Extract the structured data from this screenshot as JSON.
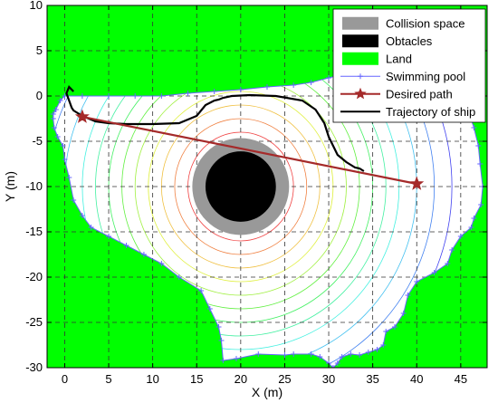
{
  "chart_data": {
    "type": "line",
    "xlabel": "X (m)",
    "ylabel": "Y (m)",
    "xlim": [
      -2,
      48
    ],
    "ylim": [
      -30,
      10
    ],
    "xticks": [
      0,
      5,
      10,
      15,
      20,
      25,
      30,
      35,
      40,
      45
    ],
    "yticks": [
      10,
      5,
      0,
      -5,
      -10,
      -15,
      -20,
      -25,
      -30
    ],
    "grid": true,
    "legend_position": "top-right",
    "legend": [
      {
        "label": "Collision space",
        "kind": "gray-patch"
      },
      {
        "label": "Obtacles",
        "kind": "black-patch"
      },
      {
        "label": "Land",
        "kind": "green-patch"
      },
      {
        "label": "Swimming pool",
        "kind": "blue-line-markers"
      },
      {
        "label": "Desired path",
        "kind": "red-line-star"
      },
      {
        "label": "Trajectory of ship",
        "kind": "black-line"
      }
    ],
    "obstacle": {
      "center": [
        20,
        -10
      ],
      "obstacle_radius": 4,
      "collision_radius": 5.5
    },
    "potential_contours": {
      "center": [
        20,
        -10
      ],
      "radii": [
        6,
        7.5,
        9,
        10.5,
        12,
        13.5,
        15,
        16.5,
        18,
        20,
        22,
        24
      ]
    },
    "desired_path": {
      "x": [
        2,
        40
      ],
      "y": [
        -2.3,
        -9.7
      ]
    },
    "trajectory": {
      "x": [
        1,
        0.5,
        0.2,
        0.5,
        0.8,
        1.0,
        2.0,
        3.5,
        5,
        7,
        10,
        13,
        15,
        16,
        17,
        17.5,
        18,
        19,
        21,
        24,
        27,
        28.5,
        29.5,
        30,
        30.5,
        31,
        32,
        33,
        33.5,
        34
      ],
      "y": [
        0.5,
        1.0,
        0.3,
        -0.5,
        -1.3,
        -1.6,
        -2.2,
        -2.8,
        -3.0,
        -3.1,
        -3.1,
        -3.0,
        -2.2,
        -1.0,
        -0.5,
        -0.4,
        -0.2,
        0.0,
        0.1,
        0.0,
        -0.5,
        -1.5,
        -3.0,
        -4.5,
        -5.5,
        -6.5,
        -7.3,
        -7.9,
        -8.0,
        -8.3
      ]
    },
    "swimming_pool_boundary": {
      "x": [
        -1,
        -0.5,
        0,
        2,
        5,
        8,
        11,
        14,
        17,
        20,
        23,
        26,
        28,
        30,
        32,
        34,
        34.8,
        35.8,
        37,
        39,
        41,
        43,
        44.5,
        45,
        45.2,
        45.8,
        46.5,
        47,
        47.2,
        47.5,
        47.3,
        46.5,
        46.2,
        45,
        44,
        43.5,
        42,
        40,
        39,
        38.5,
        37.5,
        36.5,
        36.2,
        35.5,
        34.5,
        33.5,
        32.5,
        31.5,
        31,
        30.5,
        30,
        29,
        28,
        26,
        25,
        22,
        19.5,
        18,
        17.8,
        17.5,
        16.5,
        15.5,
        13,
        11,
        9,
        7,
        5,
        3,
        2,
        1,
        0.5,
        0,
        -0.2,
        -0.8,
        -1.2,
        -1.3,
        -1.3,
        -1.0
      ],
      "y": [
        -1.5,
        -0.5,
        0.0,
        0.0,
        0.0,
        0.0,
        0.0,
        0.3,
        0.5,
        0.7,
        1.0,
        1.2,
        1.5,
        2.0,
        2.5,
        3.0,
        4.5,
        5.5,
        5.3,
        4.5,
        3.5,
        3.0,
        2.0,
        1.0,
        0.0,
        -1.5,
        -3.5,
        -5.5,
        -7.5,
        -10.0,
        -12.0,
        -13.5,
        -14.5,
        -15.5,
        -17.0,
        -18.5,
        -19.5,
        -20.5,
        -22.0,
        -24.0,
        -25.5,
        -26.0,
        -27.5,
        -28.0,
        -28.3,
        -28.6,
        -28.5,
        -28.8,
        -29.5,
        -30.0,
        -29.5,
        -28.8,
        -28.5,
        -28.5,
        -28.6,
        -28.5,
        -29.0,
        -29.2,
        -27.0,
        -25.5,
        -23.5,
        -21.5,
        -20.0,
        -18.5,
        -17.5,
        -16.5,
        -15.5,
        -14.5,
        -13.2,
        -11.5,
        -9.0,
        -7.0,
        -5.5,
        -4.5,
        -3.5,
        -2.5,
        -2.0,
        -1.5
      ]
    }
  }
}
